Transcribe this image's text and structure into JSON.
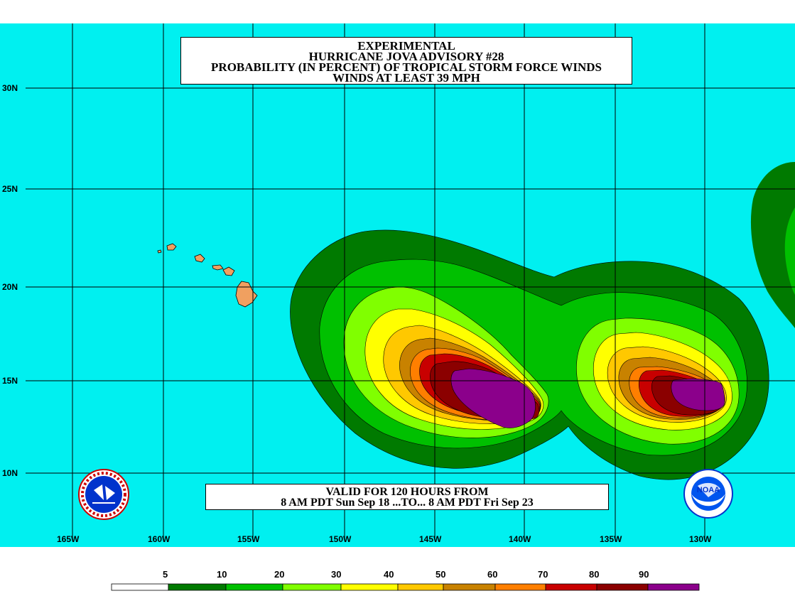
{
  "title": {
    "line1": "EXPERIMENTAL",
    "line2": "HURRICANE JOVA ADVISORY #28",
    "line3": "PROBABILITY (IN PERCENT) OF TROPICAL STORM FORCE WINDS",
    "line4": "WINDS AT LEAST 39 MPH"
  },
  "valid": {
    "line1": "VALID FOR 120 HOURS FROM",
    "line2": "8 AM PDT Sun Sep 18 ...TO... 8 AM PDT Fri Sep 23"
  },
  "lat_labels": [
    "30N",
    "25N",
    "20N",
    "15N",
    "10N"
  ],
  "lon_labels": [
    "165W",
    "160W",
    "155W",
    "150W",
    "145W",
    "140W",
    "135W",
    "130W"
  ],
  "legend": {
    "labels": [
      "5",
      "10",
      "20",
      "30",
      "40",
      "50",
      "60",
      "70",
      "80",
      "90"
    ],
    "colors": [
      "#ffffff",
      "#007a00",
      "#00c000",
      "#80ff00",
      "#ffff00",
      "#ffc800",
      "#c88200",
      "#ff7f00",
      "#c80000",
      "#8b0000",
      "#8b008b"
    ]
  },
  "colors": {
    "ocean": "#00f0f0",
    "land": "#f0a060",
    "grid": "#000000"
  },
  "icons": {
    "left_logo": "nws-logo-icon",
    "right_logo": "noaa-logo-icon"
  }
}
